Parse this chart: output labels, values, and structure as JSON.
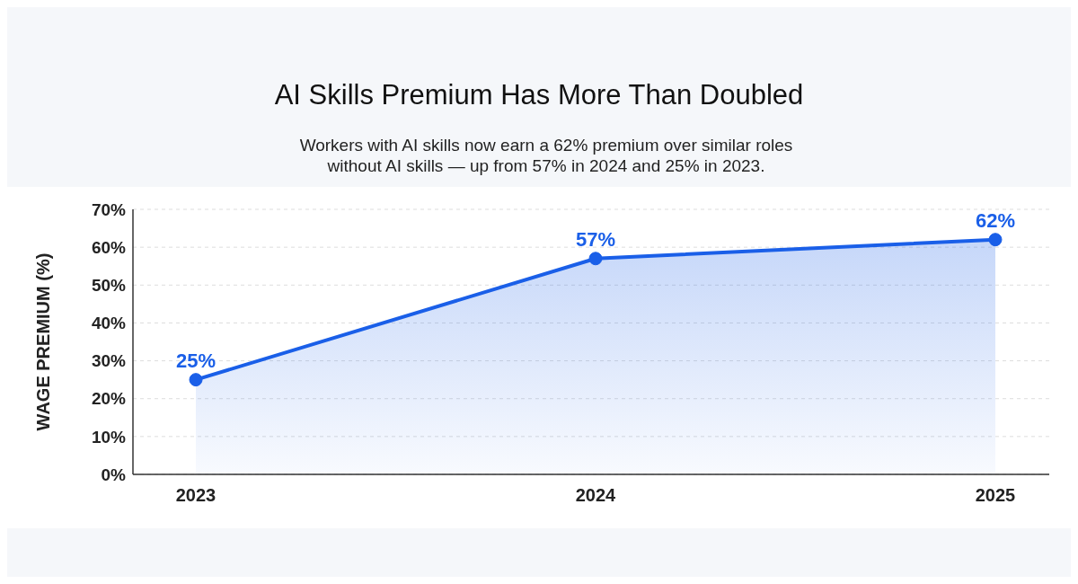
{
  "chart_data": {
    "type": "area",
    "title": "AI Skills Premium Has More Than Doubled",
    "subtitle": "Workers with AI skills now earn a 62% premium over similar roles without AI skills — up from 57% in 2024 and 25% in 2023.",
    "ylabel": "WAGE PREMIUM (%)",
    "categories": [
      "2023",
      "2024",
      "2025"
    ],
    "series": [
      {
        "color": "#1a5fe8",
        "values": [
          25,
          57,
          62
        ],
        "value_labels": [
          "25%",
          "57%",
          "62%"
        ]
      }
    ],
    "ylim": [
      0,
      70
    ],
    "yticks": [
      {
        "value": 0,
        "label": "0%"
      },
      {
        "value": 10,
        "label": "10%"
      },
      {
        "value": 20,
        "label": "20%"
      },
      {
        "value": 30,
        "label": "30%"
      },
      {
        "value": 40,
        "label": "40%"
      },
      {
        "value": 50,
        "label": "50%"
      },
      {
        "value": 60,
        "label": "60%"
      },
      {
        "value": 70,
        "label": "70%"
      }
    ],
    "grid": "y",
    "marker": "circle",
    "line_style": "solid",
    "legend": false
  }
}
